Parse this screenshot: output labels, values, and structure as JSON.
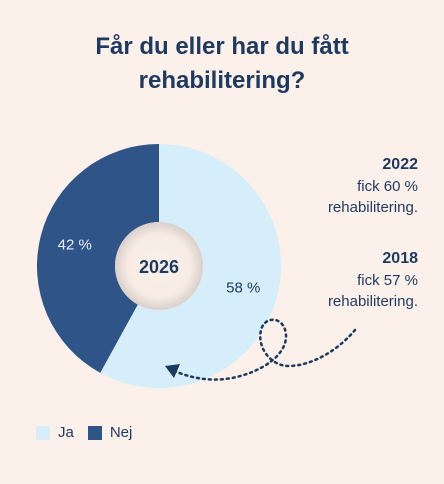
{
  "chart_data": {
    "type": "pie",
    "title_lines": [
      "Får du eller har du fått",
      "rehabilitering?"
    ],
    "center_label": "2026",
    "slices": [
      {
        "label": "Ja",
        "value": 58,
        "display": "58 %",
        "color": "#d6eefa"
      },
      {
        "label": "Nej",
        "value": 42,
        "display": "42 %",
        "color": "#2f5488"
      }
    ],
    "legend": [
      "Ja",
      "Nej"
    ],
    "legend_placement": "bottom-left",
    "annotations": [
      {
        "year": "2022",
        "lines": [
          "fick 60 %",
          "rehabilitering."
        ]
      },
      {
        "year": "2018",
        "lines": [
          "fick 57 %",
          "rehabilitering."
        ]
      }
    ]
  }
}
